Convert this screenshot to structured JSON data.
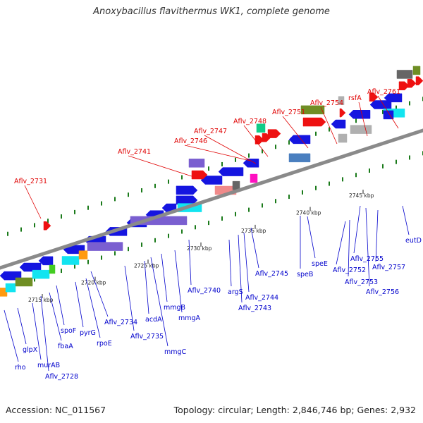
{
  "title": "Anoxybacillus flavithermus WK1, complete genome",
  "footer": {
    "accession": "Accession: NC_011567",
    "summary": "Topology: circular; Length: 2,846,746 bp; Genes: 2,932"
  },
  "colors": {
    "label_red": "#e00000",
    "label_blue": "#0000cc",
    "backbone": "#8a8a8a",
    "tick_green": "#1a7a1a",
    "cds_blue": "#1515e0",
    "cds_purple": "#7a5fd0",
    "cds_red": "#ee1111",
    "cds_olive": "#6f8e24",
    "cds_cyan": "#12e4f0",
    "cds_steel": "#4a7fbf",
    "cds_gray": "#b0b0b0",
    "cds_darkgray": "#666666",
    "cds_pink": "#f08a8a",
    "cds_magenta": "#ff10c0",
    "cds_green": "#11cc88",
    "cds_orange": "#ff9a10",
    "cds_lime": "#44cc22"
  },
  "scale_ticks": [
    "2715 kbp",
    "2720 kbp",
    "2725 kbp",
    "2730 kbp",
    "2735 kbp",
    "2740 kbp",
    "2745 kbp"
  ],
  "top_labels": [
    "Aflv_2731",
    "Aflv_2741",
    "Aflv_2746",
    "Aflv_2747",
    "Aflv_2748",
    "Aflv_2751",
    "Aflv_2754",
    "rsfA",
    "Aflv_2761"
  ],
  "bottom_labels": [
    "rho",
    "glpX",
    "murAB",
    "Aflv_2728",
    "fbaA",
    "spoF",
    "pyrG",
    "rpoE",
    "Aflv_2734",
    "Aflv_2735",
    "acdA",
    "mmgC",
    "mmgB",
    "mmgA",
    "Aflv_2740",
    "argS",
    "Aflv_2743",
    "Aflv_2744",
    "Aflv_2745",
    "speB",
    "speE",
    "Aflv_2752",
    "Aflv_2753",
    "Aflv_2755",
    "Aflv_2756",
    "Aflv_2757",
    "eutD"
  ],
  "icons": {
    "feature_arrow": "arrow-icon"
  }
}
